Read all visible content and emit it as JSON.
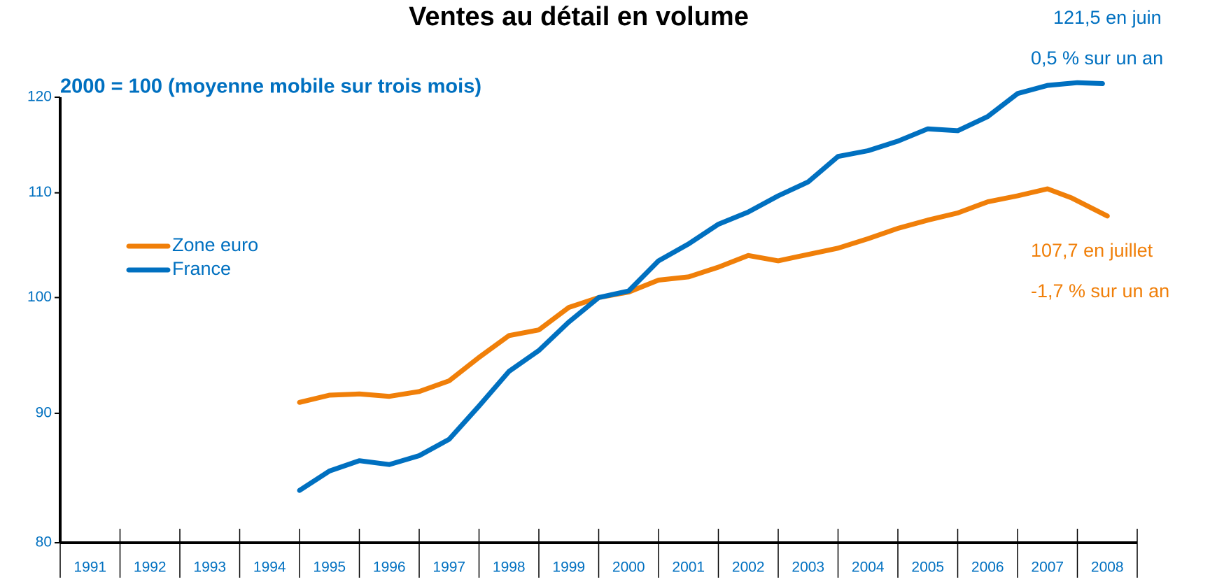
{
  "chart_data": {
    "type": "line",
    "title": "Ventes au détail en volume",
    "subtitle": "2000 = 100 (moyenne mobile sur trois mois)",
    "categories": [
      "1991",
      "1992",
      "1993",
      "1994",
      "1995",
      "1996",
      "1997",
      "1998",
      "1999",
      "2000",
      "2001",
      "2002",
      "2003",
      "2004",
      "2005",
      "2006",
      "2007",
      "2008"
    ],
    "xlim": [
      1991,
      2009
    ],
    "xticks": [
      1991,
      1992,
      1993,
      1994,
      1995,
      1996,
      1997,
      1998,
      1999,
      2000,
      2001,
      2002,
      2003,
      2004,
      2005,
      2006,
      2007,
      2008,
      2009
    ],
    "ylim": [
      80,
      120
    ],
    "yticks": [
      80,
      90,
      100,
      110,
      120
    ],
    "log_scale": true,
    "legend": "left",
    "series": [
      {
        "name": "Zone euro",
        "color": "#f07f09",
        "x": [
          1995.0,
          1995.5,
          1996.0,
          1996.5,
          1997.0,
          1997.5,
          1998.0,
          1998.5,
          1999.0,
          1999.5,
          2000.0,
          2000.5,
          2001.0,
          2001.5,
          2002.0,
          2002.5,
          2003.0,
          2003.5,
          2004.0,
          2004.5,
          2005.0,
          2005.5,
          2006.0,
          2006.5,
          2007.0,
          2007.5,
          2007.9,
          2008.5
        ],
        "values": [
          90.9,
          91.5,
          91.6,
          91.4,
          91.8,
          92.7,
          94.7,
          96.6,
          97.1,
          99.1,
          100,
          100.5,
          101.6,
          101.9,
          102.8,
          103.9,
          103.4,
          104.0,
          104.6,
          105.5,
          106.5,
          107.3,
          108.0,
          109.1,
          109.7,
          110.4,
          109.5,
          107.7
        ]
      },
      {
        "name": "France",
        "color": "#0070c0",
        "x": [
          1995.0,
          1995.5,
          1996.0,
          1996.5,
          1997.0,
          1997.5,
          1998.0,
          1998.5,
          1999.0,
          1999.5,
          2000.0,
          2000.5,
          2001.0,
          2001.5,
          2002.0,
          2002.5,
          2003.0,
          2003.5,
          2004.0,
          2004.5,
          2005.0,
          2005.5,
          2006.0,
          2006.5,
          2007.0,
          2007.5,
          2008.0,
          2008.42
        ],
        "values": [
          83.9,
          85.4,
          86.2,
          85.9,
          86.6,
          87.9,
          90.6,
          93.5,
          95.3,
          97.8,
          100,
          100.6,
          103.4,
          105.0,
          106.9,
          108.1,
          109.7,
          111.1,
          113.7,
          114.3,
          115.3,
          116.6,
          116.4,
          117.9,
          120.4,
          121.3,
          121.6,
          121.5
        ]
      }
    ],
    "annotations": [
      {
        "text": "121,5 en juin",
        "color": "#0070c0"
      },
      {
        "text": "0,5 % sur un an",
        "color": "#0070c0"
      },
      {
        "text": "107,7 en juillet",
        "color": "#f07f09"
      },
      {
        "text": "-1,7 % sur un an",
        "color": "#f07f09"
      }
    ]
  }
}
